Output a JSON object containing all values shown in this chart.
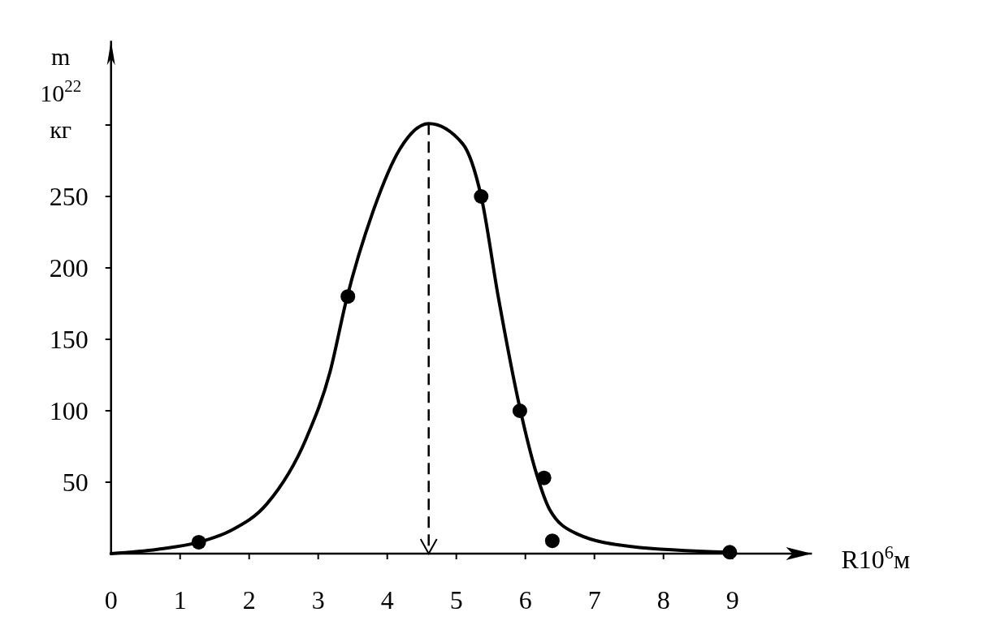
{
  "chart_data": {
    "type": "scatter",
    "xlabel": "R10$^{6}$м",
    "ylabel": "m\n10$^{22}$\nкг",
    "xlim": [
      0,
      10.15
    ],
    "ylim": [
      0,
      359
    ],
    "xticks": [
      0,
      1,
      2,
      3,
      4,
      5,
      6,
      7,
      8,
      9
    ],
    "yticks": [
      50,
      100,
      150,
      200,
      250,
      {
        "value": 300,
        "label": null
      }
    ],
    "marker": "circle",
    "grid": false,
    "series": [
      {
        "color": "#000000",
        "x": [
          1.27,
          3.43,
          5.36,
          5.92,
          6.27,
          6.39,
          8.96
        ],
        "values": [
          8,
          180,
          250,
          100,
          53,
          9,
          1
        ]
      },
      {
        "type": "line",
        "color": "#000000",
        "line_style": "solid",
        "marker": "none",
        "x": [
          0,
          0.67,
          1.27,
          1.73,
          2.26,
          2.83,
          3.17,
          3.41,
          3.79,
          4.18,
          4.6,
          5.09,
          5.36,
          5.61,
          5.92,
          6.16,
          6.35,
          6.74,
          7.53,
          8.96
        ],
        "values": [
          0,
          3,
          8,
          16,
          35,
          81,
          127,
          178,
          239,
          283,
          301,
          287,
          250,
          179,
          102,
          56,
          31,
          14,
          5,
          1
        ]
      }
    ],
    "ref_lines": [
      {
        "axis": "x",
        "value": 4.6,
        "line_style": "dashed"
      }
    ]
  }
}
